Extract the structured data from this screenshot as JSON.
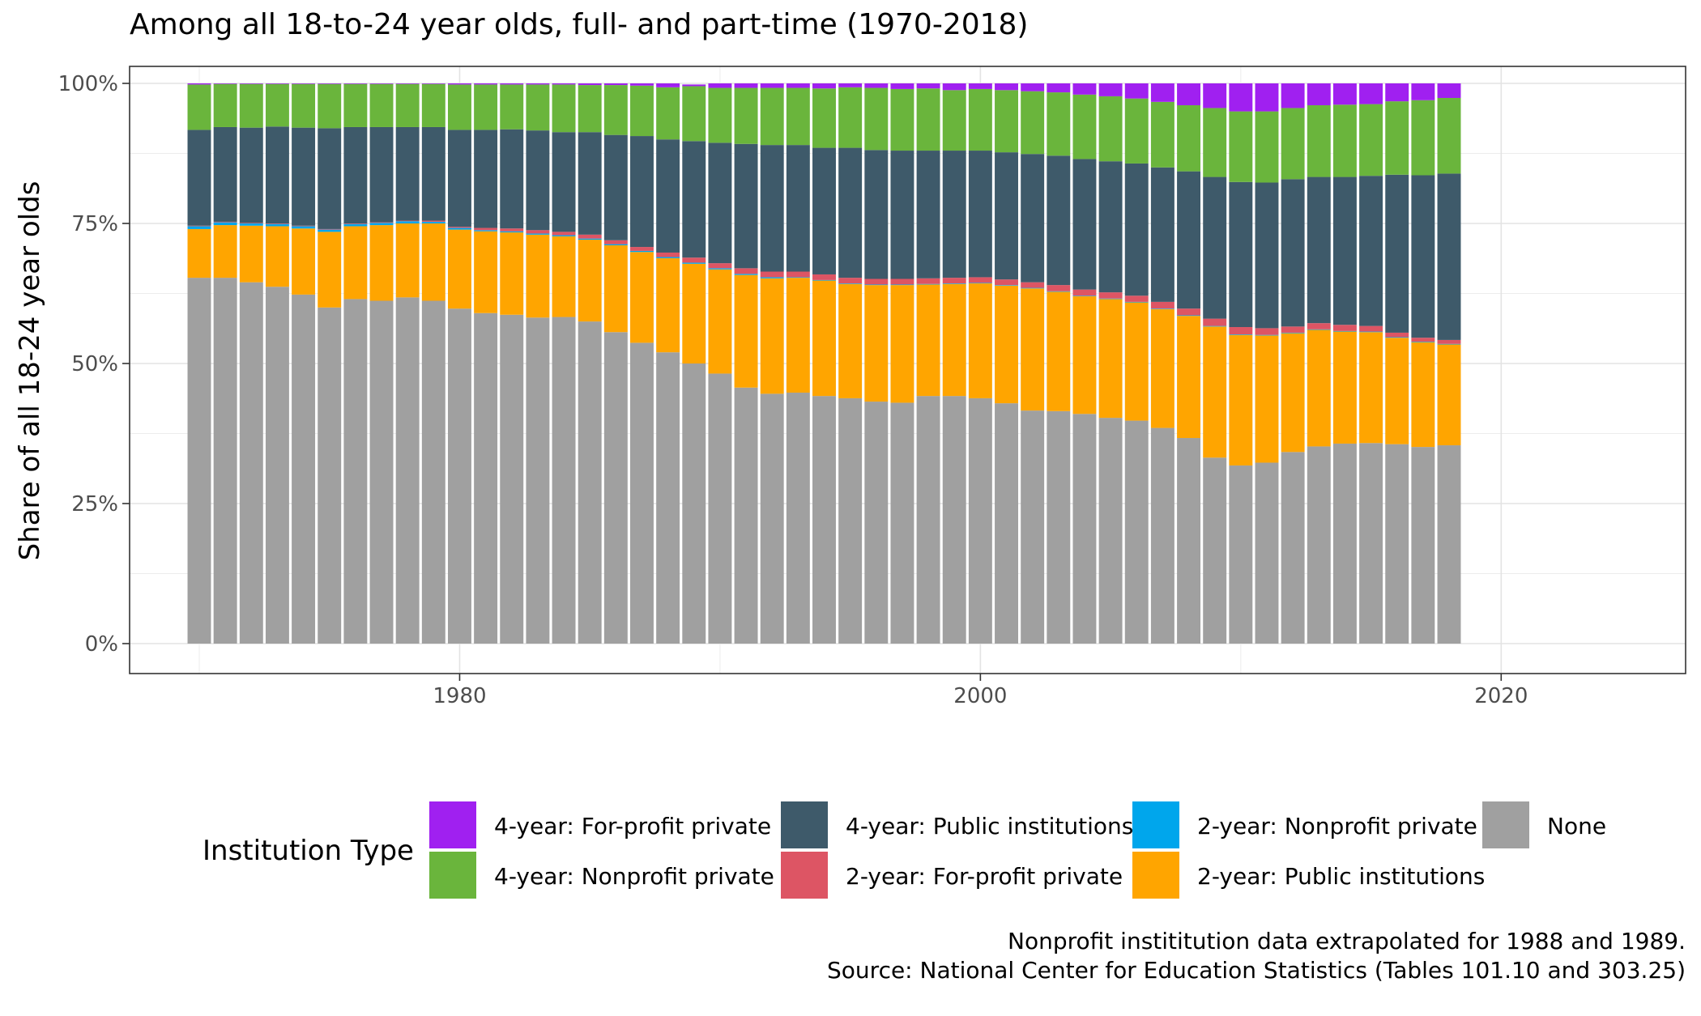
{
  "chart_data": {
    "type": "bar",
    "stacked": true,
    "title": "Among all 18-to-24 year olds, full- and part-time (1970-2018)",
    "ylabel": "Share of all 18-24 year olds",
    "xlabel": "",
    "ylim": [
      0,
      1
    ],
    "xlim": [
      1970,
      2020
    ],
    "y_ticks": [
      "0%",
      "25%",
      "50%",
      "75%",
      "100%"
    ],
    "x_ticks": [
      "1980",
      "2000",
      "2020"
    ],
    "grid": true,
    "legend": {
      "title": "Institution Type",
      "position": "bottom",
      "entries": [
        {
          "name": "4-year: For-profit private",
          "color": "#a020f0"
        },
        {
          "name": "4-year: Nonprofit private",
          "color": "#6ab53c"
        },
        {
          "name": "4-year: Public institutions",
          "color": "#3e5a6a"
        },
        {
          "name": "2-year: For-profit private",
          "color": "#dd5564"
        },
        {
          "name": "2-year: Nonprofit private",
          "color": "#00a6ec"
        },
        {
          "name": "2-year: Public institutions",
          "color": "#ffa500"
        },
        {
          "name": "None",
          "color": "#a0a0a0"
        }
      ]
    },
    "x": [
      1970,
      1971,
      1972,
      1973,
      1974,
      1975,
      1976,
      1977,
      1978,
      1979,
      1980,
      1981,
      1982,
      1983,
      1984,
      1985,
      1986,
      1987,
      1988,
      1989,
      1990,
      1991,
      1992,
      1993,
      1994,
      1995,
      1996,
      1997,
      1998,
      1999,
      2000,
      2001,
      2002,
      2003,
      2004,
      2005,
      2006,
      2007,
      2008,
      2009,
      2010,
      2011,
      2012,
      2013,
      2014,
      2015,
      2016,
      2017,
      2018
    ],
    "stack_order": [
      "None",
      "2-year: Public institutions",
      "2-year: Nonprofit private",
      "2-year: For-profit private",
      "4-year: Public institutions",
      "4-year: Nonprofit private",
      "4-year: For-profit private"
    ],
    "series": [
      {
        "name": "None",
        "values": [
          0.653,
          0.653,
          0.645,
          0.637,
          0.623,
          0.6,
          0.615,
          0.612,
          0.618,
          0.612,
          0.598,
          0.59,
          0.587,
          0.582,
          0.583,
          0.575,
          0.556,
          0.537,
          0.52,
          0.5,
          0.482,
          0.457,
          0.446,
          0.448,
          0.442,
          0.438,
          0.432,
          0.43,
          0.442,
          0.442,
          0.438,
          0.429,
          0.416,
          0.415,
          0.41,
          0.403,
          0.398,
          0.385,
          0.367,
          0.332,
          0.318,
          0.323,
          0.342,
          0.352,
          0.357,
          0.358,
          0.356,
          0.351,
          0.354
        ]
      },
      {
        "name": "2-year: Public institutions",
        "values": [
          0.087,
          0.094,
          0.101,
          0.108,
          0.118,
          0.135,
          0.13,
          0.135,
          0.132,
          0.138,
          0.141,
          0.146,
          0.147,
          0.148,
          0.144,
          0.146,
          0.155,
          0.162,
          0.168,
          0.178,
          0.186,
          0.201,
          0.206,
          0.205,
          0.206,
          0.204,
          0.208,
          0.21,
          0.199,
          0.2,
          0.205,
          0.21,
          0.218,
          0.213,
          0.21,
          0.212,
          0.211,
          0.212,
          0.218,
          0.234,
          0.233,
          0.227,
          0.212,
          0.208,
          0.2,
          0.198,
          0.19,
          0.187,
          0.18
        ]
      },
      {
        "name": "2-year: Nonprofit private",
        "values": [
          0.005,
          0.005,
          0.004,
          0.004,
          0.004,
          0.004,
          0.004,
          0.004,
          0.004,
          0.003,
          0.003,
          0.002,
          0.002,
          0.002,
          0.002,
          0.002,
          0.002,
          0.002,
          0.002,
          0.002,
          0.002,
          0.002,
          0.002,
          0.001,
          0.001,
          0.001,
          0.001,
          0.001,
          0.001,
          0.001,
          0.001,
          0.001,
          0.001,
          0.001,
          0.001,
          0.001,
          0.001,
          0.001,
          0.001,
          0.001,
          0.001,
          0.001,
          0.001,
          0.001,
          0.001,
          0.001,
          0.001,
          0.001,
          0.001
        ]
      },
      {
        "name": "2-year: For-profit private",
        "values": [
          0.001,
          0.001,
          0.001,
          0.001,
          0.001,
          0.001,
          0.001,
          0.001,
          0.001,
          0.002,
          0.002,
          0.004,
          0.005,
          0.006,
          0.006,
          0.007,
          0.007,
          0.007,
          0.008,
          0.009,
          0.009,
          0.01,
          0.01,
          0.01,
          0.01,
          0.01,
          0.01,
          0.01,
          0.01,
          0.01,
          0.01,
          0.01,
          0.01,
          0.011,
          0.011,
          0.011,
          0.011,
          0.012,
          0.012,
          0.013,
          0.013,
          0.012,
          0.011,
          0.011,
          0.011,
          0.01,
          0.008,
          0.007,
          0.007
        ]
      },
      {
        "name": "4-year: Public institutions",
        "values": [
          0.171,
          0.169,
          0.17,
          0.173,
          0.175,
          0.18,
          0.172,
          0.17,
          0.167,
          0.167,
          0.173,
          0.175,
          0.177,
          0.178,
          0.178,
          0.183,
          0.188,
          0.198,
          0.202,
          0.208,
          0.215,
          0.222,
          0.226,
          0.226,
          0.226,
          0.232,
          0.23,
          0.229,
          0.228,
          0.227,
          0.226,
          0.227,
          0.229,
          0.231,
          0.233,
          0.234,
          0.236,
          0.24,
          0.245,
          0.253,
          0.259,
          0.26,
          0.263,
          0.261,
          0.264,
          0.268,
          0.282,
          0.29,
          0.297
        ]
      },
      {
        "name": "4-year: Nonprofit private",
        "values": [
          0.081,
          0.077,
          0.078,
          0.076,
          0.078,
          0.079,
          0.077,
          0.077,
          0.077,
          0.077,
          0.081,
          0.081,
          0.08,
          0.082,
          0.085,
          0.084,
          0.089,
          0.09,
          0.093,
          0.098,
          0.098,
          0.1,
          0.102,
          0.102,
          0.106,
          0.108,
          0.111,
          0.11,
          0.111,
          0.108,
          0.11,
          0.111,
          0.112,
          0.113,
          0.115,
          0.116,
          0.116,
          0.117,
          0.118,
          0.123,
          0.126,
          0.127,
          0.127,
          0.128,
          0.129,
          0.128,
          0.131,
          0.134,
          0.135
        ]
      },
      {
        "name": "4-year: For-profit private",
        "values": [
          0.002,
          0.001,
          0.001,
          0.001,
          0.001,
          0.001,
          0.001,
          0.001,
          0.001,
          0.001,
          0.002,
          0.002,
          0.002,
          0.002,
          0.002,
          0.003,
          0.003,
          0.004,
          0.007,
          0.003,
          0.008,
          0.008,
          0.008,
          0.008,
          0.009,
          0.007,
          0.008,
          0.01,
          0.009,
          0.012,
          0.01,
          0.012,
          0.014,
          0.016,
          0.02,
          0.023,
          0.027,
          0.033,
          0.039,
          0.044,
          0.05,
          0.05,
          0.044,
          0.039,
          0.038,
          0.037,
          0.032,
          0.03,
          0.026
        ]
      }
    ],
    "caption": [
      "Nonprofit instititution data extrapolated for 1988 and 1989.",
      "Source: National Center for Education Statistics (Tables 101.10 and 303.25)"
    ]
  }
}
